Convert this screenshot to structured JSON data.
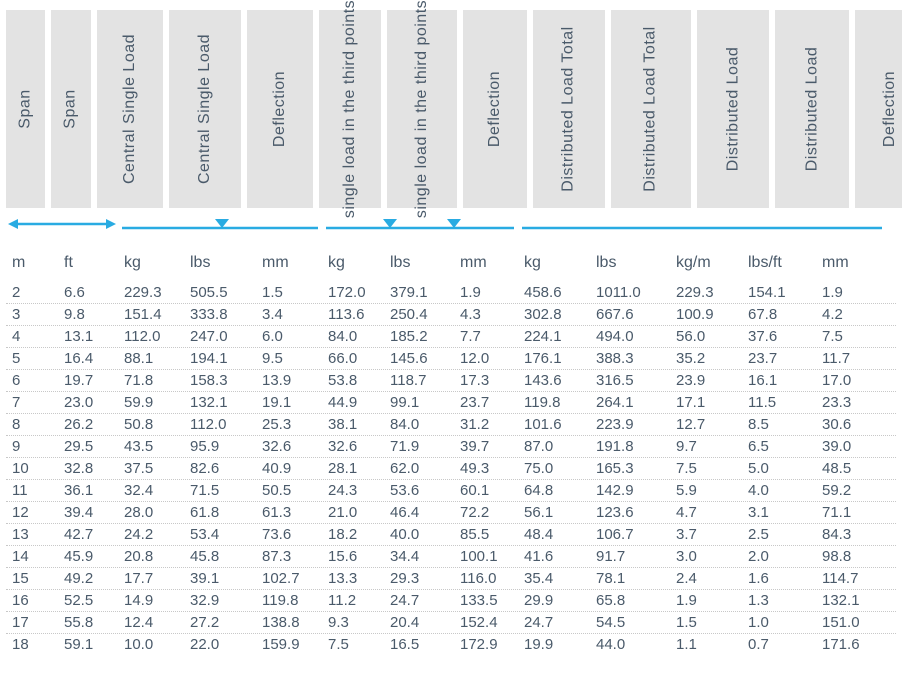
{
  "style": {
    "accent_color": "#29abe2",
    "bg_color": "#ffffff",
    "header_bg": "#e3e3e3",
    "text_color": "#4a5a6a",
    "dotted_row_color": "#c8c8c8",
    "font_family": "Arial, Helvetica, sans-serif",
    "header_font_size_pt": 12,
    "body_font_size_pt": 11,
    "header_rotation_deg": -90
  },
  "columns": [
    {
      "header": "Span",
      "unit": "m",
      "group": 0
    },
    {
      "header": "Span",
      "unit": "ft",
      "group": 0
    },
    {
      "header": "Central Single Load",
      "unit": "kg",
      "group": 1
    },
    {
      "header": "Central Single Load",
      "unit": "lbs",
      "group": 1
    },
    {
      "header": "Deflection",
      "unit": "mm",
      "group": 1
    },
    {
      "header": "single load in the third points",
      "unit": "kg",
      "group": 2
    },
    {
      "header": "single load in the third points",
      "unit": "lbs",
      "group": 2
    },
    {
      "header": "Deflection",
      "unit": "mm",
      "group": 2
    },
    {
      "header": "Distributed Load Total",
      "unit": "kg",
      "group": 3
    },
    {
      "header": "Distributed Load Total",
      "unit": "lbs",
      "group": 3
    },
    {
      "header": "Distributed Load",
      "unit": "kg/m",
      "group": 3
    },
    {
      "header": "Distributed Load",
      "unit": "lbs/ft",
      "group": 3
    },
    {
      "header": "Deflection",
      "unit": "mm",
      "group": 3
    }
  ],
  "indicators": [
    {
      "type": "double-arrow",
      "span_cols": 2
    },
    {
      "type": "line-center-triangle",
      "span_cols": 3
    },
    {
      "type": "line-two-triangles",
      "span_cols": 3
    },
    {
      "type": "line-plain",
      "span_cols": 5
    }
  ],
  "rows": [
    [
      "2",
      "6.6",
      "229.3",
      "505.5",
      "1.5",
      "172.0",
      "379.1",
      "1.9",
      "458.6",
      "1011.0",
      "229.3",
      "154.1",
      "1.9"
    ],
    [
      "3",
      "9.8",
      "151.4",
      "333.8",
      "3.4",
      "113.6",
      "250.4",
      "4.3",
      "302.8",
      "667.6",
      "100.9",
      "67.8",
      "4.2"
    ],
    [
      "4",
      "13.1",
      "112.0",
      "247.0",
      "6.0",
      "84.0",
      "185.2",
      "7.7",
      "224.1",
      "494.0",
      "56.0",
      "37.6",
      "7.5"
    ],
    [
      "5",
      "16.4",
      "88.1",
      "194.1",
      "9.5",
      "66.0",
      "145.6",
      "12.0",
      "176.1",
      "388.3",
      "35.2",
      "23.7",
      "11.7"
    ],
    [
      "6",
      "19.7",
      "71.8",
      "158.3",
      "13.9",
      "53.8",
      "118.7",
      "17.3",
      "143.6",
      "316.5",
      "23.9",
      "16.1",
      "17.0"
    ],
    [
      "7",
      "23.0",
      "59.9",
      "132.1",
      "19.1",
      "44.9",
      "99.1",
      "23.7",
      "119.8",
      "264.1",
      "17.1",
      "11.5",
      "23.3"
    ],
    [
      "8",
      "26.2",
      "50.8",
      "112.0",
      "25.3",
      "38.1",
      "84.0",
      "31.2",
      "101.6",
      "223.9",
      "12.7",
      "8.5",
      "30.6"
    ],
    [
      "9",
      "29.5",
      "43.5",
      "95.9",
      "32.6",
      "32.6",
      "71.9",
      "39.7",
      "87.0",
      "191.8",
      "9.7",
      "6.5",
      "39.0"
    ],
    [
      "10",
      "32.8",
      "37.5",
      "82.6",
      "40.9",
      "28.1",
      "62.0",
      "49.3",
      "75.0",
      "165.3",
      "7.5",
      "5.0",
      "48.5"
    ],
    [
      "11",
      "36.1",
      "32.4",
      "71.5",
      "50.5",
      "24.3",
      "53.6",
      "60.1",
      "64.8",
      "142.9",
      "5.9",
      "4.0",
      "59.2"
    ],
    [
      "12",
      "39.4",
      "28.0",
      "61.8",
      "61.3",
      "21.0",
      "46.4",
      "72.2",
      "56.1",
      "123.6",
      "4.7",
      "3.1",
      "71.1"
    ],
    [
      "13",
      "42.7",
      "24.2",
      "53.4",
      "73.6",
      "18.2",
      "40.0",
      "85.5",
      "48.4",
      "106.7",
      "3.7",
      "2.5",
      "84.3"
    ],
    [
      "14",
      "45.9",
      "20.8",
      "45.8",
      "87.3",
      "15.6",
      "34.4",
      "100.1",
      "41.6",
      "91.7",
      "3.0",
      "2.0",
      "98.8"
    ],
    [
      "15",
      "49.2",
      "17.7",
      "39.1",
      "102.7",
      "13.3",
      "29.3",
      "116.0",
      "35.4",
      "78.1",
      "2.4",
      "1.6",
      "114.7"
    ],
    [
      "16",
      "52.5",
      "14.9",
      "32.9",
      "119.8",
      "11.2",
      "24.7",
      "133.5",
      "29.9",
      "65.8",
      "1.9",
      "1.3",
      "132.1"
    ],
    [
      "17",
      "55.8",
      "12.4",
      "27.2",
      "138.8",
      "9.3",
      "20.4",
      "152.4",
      "24.7",
      "54.5",
      "1.5",
      "1.0",
      "151.0"
    ],
    [
      "18",
      "59.1",
      "10.0",
      "22.0",
      "159.9",
      "7.5",
      "16.5",
      "172.9",
      "19.9",
      "44.0",
      "1.1",
      "0.7",
      "171.6"
    ]
  ]
}
